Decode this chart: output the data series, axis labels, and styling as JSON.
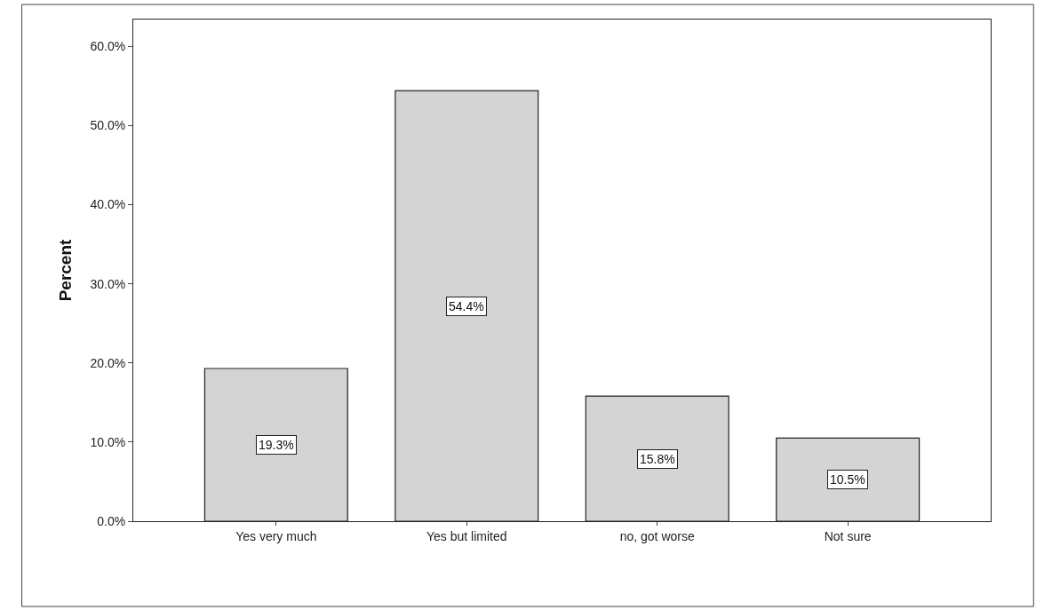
{
  "chart_data": {
    "type": "bar",
    "ylabel": "Percent",
    "categories": [
      "Yes very much",
      "Yes but limited",
      "no, got worse",
      "Not sure"
    ],
    "values": [
      19.3,
      54.4,
      15.8,
      10.5
    ],
    "value_labels": [
      "19.3%",
      "54.4%",
      "15.8%",
      "10.5%"
    ],
    "color": "#d4d4d4",
    "ylim": [
      0,
      63.4
    ],
    "yticks": [
      {
        "value": 0,
        "label": "0.0%"
      },
      {
        "value": 10,
        "label": "10.0%"
      },
      {
        "value": 20,
        "label": "20.0%"
      },
      {
        "value": 30,
        "label": "30.0%"
      },
      {
        "value": 40,
        "label": "40.0%"
      },
      {
        "value": 50,
        "label": "50.0%"
      },
      {
        "value": 60,
        "label": "60.0%"
      }
    ],
    "legend": false
  }
}
